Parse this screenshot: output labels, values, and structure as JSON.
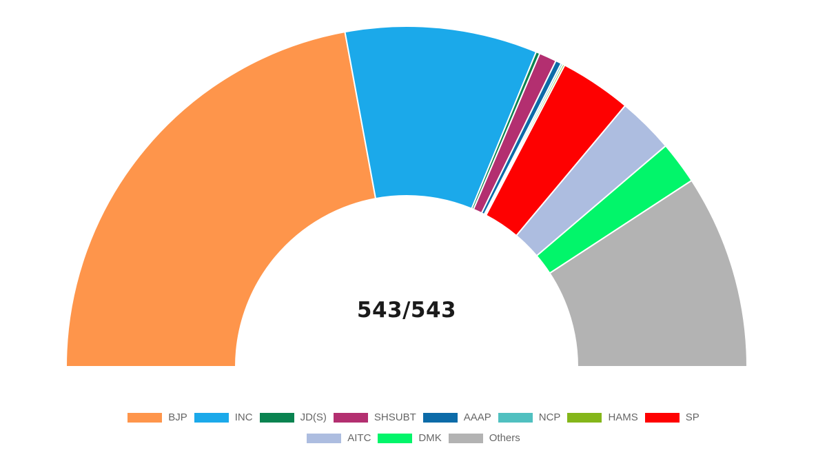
{
  "chart_data": {
    "type": "pie",
    "subtype": "half-doughnut",
    "title": "",
    "center_label": "543/543",
    "total": 543,
    "legend_position": "bottom",
    "series": [
      {
        "name": "BJP",
        "value": 240,
        "color": "#fe954b"
      },
      {
        "name": "INC",
        "value": 99,
        "color": "#1ba9ea"
      },
      {
        "name": "JD(S)",
        "value": 2,
        "color": "#0a8350"
      },
      {
        "name": "SHSUBT",
        "value": 9,
        "color": "#b32f70"
      },
      {
        "name": "AAAP",
        "value": 3,
        "color": "#0c6ba8"
      },
      {
        "name": "NCP",
        "value": 1,
        "color": "#50c0c0"
      },
      {
        "name": "HAMS",
        "value": 1,
        "color": "#84b61a"
      },
      {
        "name": "SP",
        "value": 37,
        "color": "#fe0101"
      },
      {
        "name": "AITC",
        "value": 29,
        "color": "#adbde0"
      },
      {
        "name": "DMK",
        "value": 22,
        "color": "#02f56a"
      },
      {
        "name": "Others",
        "value": 100,
        "color": "#b3b3b3"
      }
    ]
  }
}
